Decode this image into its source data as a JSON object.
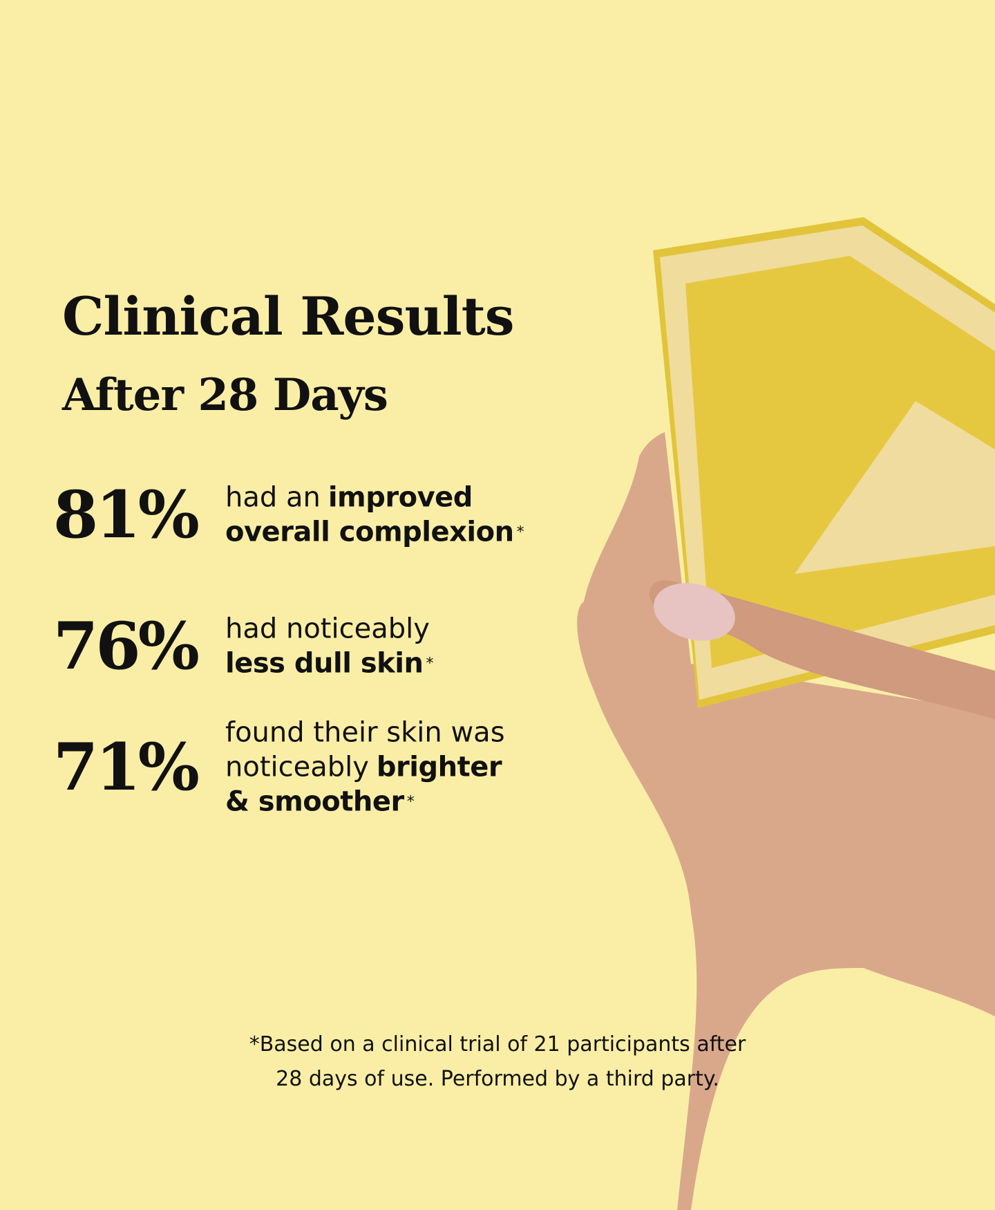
{
  "header": {
    "title": "Clinical Results",
    "subtitle": "After 28 Days"
  },
  "stats": [
    {
      "figure": "81%",
      "lines": [
        [
          {
            "text": "had an"
          },
          {
            "text": "improved",
            "bold": true
          }
        ],
        [
          {
            "text": "overall complexion",
            "bold": true
          },
          {
            "text": "*",
            "note": true
          }
        ]
      ]
    },
    {
      "figure": "76%",
      "lines": [
        [
          {
            "text": "had noticeably"
          }
        ],
        [
          {
            "text": "less dull skin",
            "bold": true
          },
          {
            "text": "*",
            "note": true
          }
        ]
      ]
    },
    {
      "figure": "71%",
      "lines": [
        [
          {
            "text": "found their skin was"
          }
        ],
        [
          {
            "text": "noticeably"
          },
          {
            "text": "brighter",
            "bold": true
          }
        ],
        [
          {
            "text": "& smoother",
            "bold": true
          },
          {
            "text": "*",
            "note": true
          }
        ]
      ]
    }
  ],
  "footnote": {
    "lines": [
      "*Based on a clinical trial of 21 participants after",
      "28 days of use. Performed by a third party."
    ]
  }
}
